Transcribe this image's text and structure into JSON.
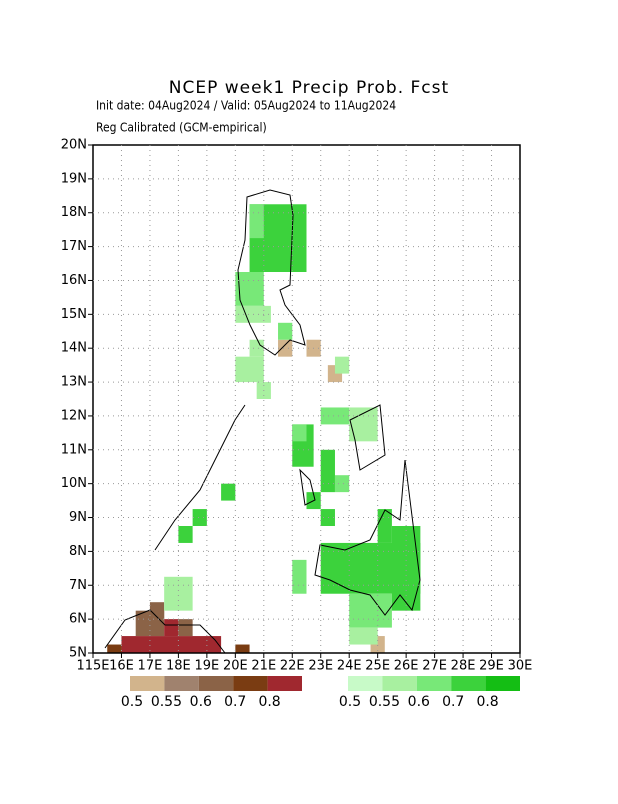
{
  "chart_data": {
    "type": "grid-map",
    "title": "NCEP week1 Precip Prob. Fcst",
    "subtitle": "Init date: 04Aug2024 / Valid: 05Aug2024 to 11Aug2024",
    "subtitle2": "Reg Calibrated (GCM-empirical)",
    "xlim": [
      115,
      130
    ],
    "ylim": [
      5,
      20
    ],
    "xticks": [
      {
        "value": 115,
        "label": "115E"
      },
      {
        "value": 116,
        "label": "16E"
      },
      {
        "value": 117,
        "label": "17E"
      },
      {
        "value": 118,
        "label": "18E"
      },
      {
        "value": 119,
        "label": "19E"
      },
      {
        "value": 120,
        "label": "20E"
      },
      {
        "value": 121,
        "label": "21E"
      },
      {
        "value": 122,
        "label": "22E"
      },
      {
        "value": 123,
        "label": "23E"
      },
      {
        "value": 124,
        "label": "24E"
      },
      {
        "value": 125,
        "label": "25E"
      },
      {
        "value": 126,
        "label": "26E"
      },
      {
        "value": 127,
        "label": "27E"
      },
      {
        "value": 128,
        "label": "28E"
      },
      {
        "value": 129,
        "label": "29E"
      },
      {
        "value": 130,
        "label": "30E"
      }
    ],
    "yticks": [
      {
        "value": 5,
        "label": "5N"
      },
      {
        "value": 6,
        "label": "6N"
      },
      {
        "value": 7,
        "label": "7N"
      },
      {
        "value": 8,
        "label": "8N"
      },
      {
        "value": 9,
        "label": "9N"
      },
      {
        "value": 10,
        "label": "10N"
      },
      {
        "value": 11,
        "label": "11N"
      },
      {
        "value": 12,
        "label": "12N"
      },
      {
        "value": 13,
        "label": "13N"
      },
      {
        "value": 14,
        "label": "14N"
      },
      {
        "value": 15,
        "label": "15N"
      },
      {
        "value": 16,
        "label": "16N"
      },
      {
        "value": 17,
        "label": "17N"
      },
      {
        "value": 18,
        "label": "18N"
      },
      {
        "value": 19,
        "label": "19N"
      },
      {
        "value": 20,
        "label": "20N"
      }
    ],
    "grid": true,
    "dry_scale": {
      "levels": [
        0.5,
        0.55,
        0.6,
        0.7,
        0.8
      ],
      "colors": [
        "#d2b48c",
        "#a0826e",
        "#8b6347",
        "#7a3c12",
        "#a0282f"
      ]
    },
    "wet_scale": {
      "levels": [
        0.5,
        0.55,
        0.6,
        0.7,
        0.8
      ],
      "colors": [
        "#c8fac8",
        "#a8f0a0",
        "#78e878",
        "#3cd23c",
        "#14be14"
      ]
    },
    "wet_blocks": [
      [
        120.5,
        16.25,
        122.5,
        18.25,
        0.7
      ],
      [
        120.5,
        17.25,
        121,
        18.25,
        0.6
      ],
      [
        120,
        15.25,
        121,
        16.25,
        0.6
      ],
      [
        120,
        14.75,
        121.25,
        15.25,
        0.55
      ],
      [
        121.5,
        14.25,
        122,
        14.75,
        0.6
      ],
      [
        120.5,
        13.75,
        121,
        14.25,
        0.55
      ],
      [
        120,
        13,
        121,
        13.75,
        0.55
      ],
      [
        120.75,
        12.5,
        121.25,
        13,
        0.55
      ],
      [
        123.5,
        13.25,
        124,
        13.75,
        0.55
      ],
      [
        122,
        10.5,
        122.75,
        11.75,
        0.7
      ],
      [
        122,
        11.25,
        122.5,
        11.75,
        0.6
      ],
      [
        123,
        9.75,
        123.5,
        11,
        0.7
      ],
      [
        122.5,
        9.25,
        123,
        9.75,
        0.7
      ],
      [
        123,
        8.75,
        123.5,
        9.25,
        0.7
      ],
      [
        123,
        11.75,
        124,
        12.25,
        0.6
      ],
      [
        124,
        11.25,
        125,
        12.25,
        0.55
      ],
      [
        123.5,
        9.75,
        124,
        10.25,
        0.6
      ],
      [
        123,
        6.75,
        126.5,
        8.25,
        0.7
      ],
      [
        124,
        5.75,
        125.5,
        6.75,
        0.6
      ],
      [
        124,
        5.25,
        125,
        5.75,
        0.55
      ],
      [
        125.5,
        6.25,
        126.5,
        8.75,
        0.7
      ],
      [
        125,
        8.25,
        125.5,
        9.25,
        0.7
      ],
      [
        122,
        6.75,
        122.5,
        7.75,
        0.6
      ],
      [
        119.5,
        9.5,
        120,
        10,
        0.7
      ],
      [
        118.5,
        8.75,
        119,
        9.25,
        0.7
      ],
      [
        118,
        8.25,
        118.5,
        8.75,
        0.7
      ],
      [
        117.5,
        6.25,
        118.5,
        7.25,
        0.55
      ]
    ],
    "dry_blocks": [
      [
        115.5,
        5,
        116,
        5.25,
        0.7
      ],
      [
        116,
        5,
        119.5,
        5.5,
        0.8
      ],
      [
        116.5,
        5.5,
        117.5,
        6.25,
        0.6
      ],
      [
        117.5,
        5.5,
        118,
        6,
        0.8
      ],
      [
        118,
        5.5,
        118.5,
        6,
        0.6
      ],
      [
        117,
        6,
        117.5,
        6.5,
        0.6
      ],
      [
        120,
        5,
        120.5,
        5.25,
        0.7
      ],
      [
        121.5,
        13.75,
        122,
        14.25,
        0.5
      ],
      [
        122.5,
        13.75,
        123,
        14.25,
        0.5
      ],
      [
        123.25,
        13,
        123.75,
        13.5,
        0.5
      ],
      [
        124.75,
        5,
        125.25,
        5.5,
        0.5
      ]
    ]
  }
}
